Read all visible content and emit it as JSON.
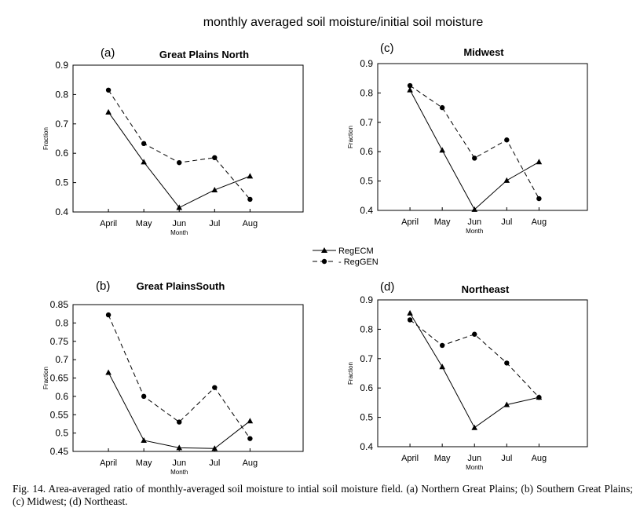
{
  "figure_title": "monthly averaged soil moisture/initial soil moisture",
  "caption": "Fig. 14. Area-averaged ratio of monthly-averaged soil moisture to intial soil moisture field. (a) Northern Great Plains; (b) Southern Great Plains; (c) Midwest; (d) Northeast.",
  "legend": {
    "entries": [
      "RegECM",
      "- RegGEN"
    ],
    "markers": [
      "triangle",
      "circle"
    ]
  },
  "colors": {
    "ink": "#000000",
    "background": "#ffffff"
  },
  "chart_data": [
    {
      "type": "line",
      "panel": "(a)",
      "title": "Great  Plains  North",
      "xlabel": "Month",
      "ylabel": "Fraction",
      "categories": [
        "April",
        "May",
        "Jun",
        "Jul",
        "Aug"
      ],
      "ylim": [
        0.4,
        0.9
      ],
      "yticks": [
        "0.4",
        "0.5",
        "0.6",
        "0.7",
        "0.8",
        "0.9"
      ],
      "series": [
        {
          "name": "RegECM",
          "values": [
            0.74,
            0.57,
            0.415,
            0.475,
            0.522
          ]
        },
        {
          "name": "RegGEN",
          "values": [
            0.815,
            0.633,
            0.568,
            0.585,
            0.443
          ]
        }
      ]
    },
    {
      "type": "line",
      "panel": "(c)",
      "title": "Midwest",
      "xlabel": "Month",
      "ylabel": "Fraction",
      "categories": [
        "April",
        "May",
        "Jun",
        "Jul",
        "Aug"
      ],
      "ylim": [
        0.4,
        0.9
      ],
      "yticks": [
        "0.4",
        "0.5",
        "0.6",
        "0.7",
        "0.8",
        "0.9"
      ],
      "series": [
        {
          "name": "RegECM",
          "values": [
            0.81,
            0.605,
            0.403,
            0.502,
            0.565
          ]
        },
        {
          "name": "RegGEN",
          "values": [
            0.825,
            0.75,
            0.578,
            0.64,
            0.44
          ]
        }
      ]
    },
    {
      "type": "line",
      "panel": "(b)",
      "title": "Great PlainsSouth",
      "xlabel": "Month",
      "ylabel": "Fraction",
      "categories": [
        "April",
        "May",
        "Jun",
        "Jul",
        "Aug"
      ],
      "ylim": [
        0.45,
        0.85
      ],
      "yticks": [
        "0.45",
        "0.5",
        "0.55",
        "0.6",
        "0.65",
        "0.7",
        "0.75",
        "0.8",
        "0.85"
      ],
      "series": [
        {
          "name": "RegECM",
          "values": [
            0.665,
            0.48,
            0.46,
            0.458,
            0.533
          ]
        },
        {
          "name": "RegGEN",
          "values": [
            0.822,
            0.6,
            0.53,
            0.624,
            0.485
          ]
        }
      ]
    },
    {
      "type": "line",
      "panel": "(d)",
      "title": "Northeast",
      "xlabel": "Month",
      "ylabel": "Fraction",
      "categories": [
        "April",
        "May",
        "Jun",
        "Jul",
        "Aug"
      ],
      "ylim": [
        0.4,
        0.9
      ],
      "yticks": [
        "0.4",
        "0.5",
        "0.6",
        "0.7",
        "0.8",
        "0.9"
      ],
      "series": [
        {
          "name": "RegECM",
          "values": [
            0.855,
            0.672,
            0.465,
            0.543,
            0.568
          ]
        },
        {
          "name": "RegGEN",
          "values": [
            0.832,
            0.745,
            0.783,
            0.685,
            0.568
          ]
        }
      ]
    }
  ]
}
